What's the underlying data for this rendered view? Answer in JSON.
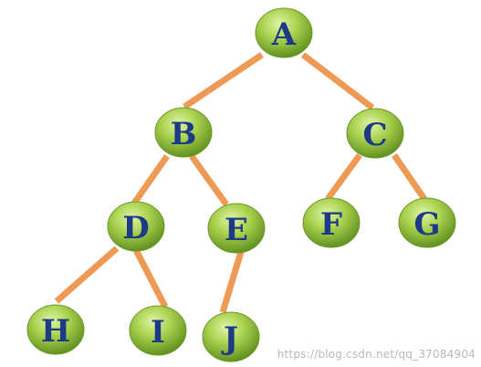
{
  "nodes": [
    {
      "id": "A",
      "label": "A"
    },
    {
      "id": "B",
      "label": "B"
    },
    {
      "id": "C",
      "label": "C"
    },
    {
      "id": "D",
      "label": "D"
    },
    {
      "id": "E",
      "label": "E"
    },
    {
      "id": "F",
      "label": "F"
    },
    {
      "id": "G",
      "label": "G"
    },
    {
      "id": "H",
      "label": "H"
    },
    {
      "id": "I",
      "label": "I"
    },
    {
      "id": "J",
      "label": "J"
    }
  ],
  "edges": [
    {
      "from": "A",
      "to": "B"
    },
    {
      "from": "A",
      "to": "C"
    },
    {
      "from": "B",
      "to": "D"
    },
    {
      "from": "B",
      "to": "E"
    },
    {
      "from": "C",
      "to": "F"
    },
    {
      "from": "C",
      "to": "G"
    },
    {
      "from": "D",
      "to": "H"
    },
    {
      "from": "D",
      "to": "I"
    },
    {
      "from": "E",
      "to": "J"
    }
  ],
  "colors": {
    "node_fill_light": "#d3ec8a",
    "node_fill_mid": "#9fcb46",
    "node_fill_dark": "#5f8e1e",
    "edge": "#ee9a55",
    "label": "#1c3a86"
  },
  "watermark": "https://blog.csdn.net/qq_37084904"
}
